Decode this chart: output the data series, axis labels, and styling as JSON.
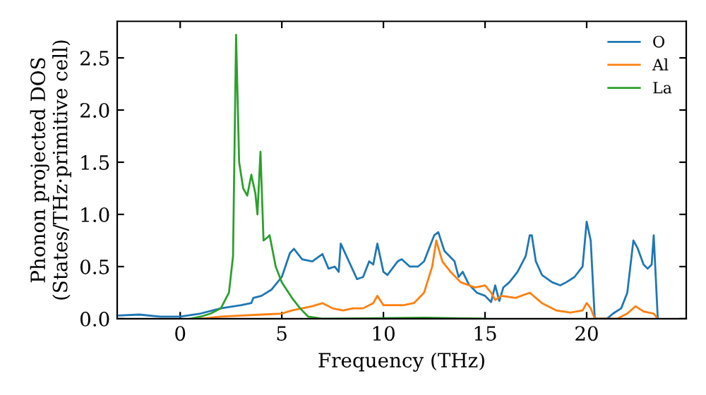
{
  "chart_data": {
    "type": "line",
    "xlabel": "Frequency (THz)",
    "ylabel": "Phonon projected DOS\n(States/THz·primitive cell)",
    "xlim": [
      -3.1,
      24.9
    ],
    "ylim": [
      0,
      2.85
    ],
    "xticks": [
      0,
      5,
      10,
      15,
      20
    ],
    "yticks": [
      {
        "value": 0,
        "label": "0.0"
      },
      {
        "value": 0.5,
        "label": "0.5"
      },
      {
        "value": 1,
        "label": "1.0"
      },
      {
        "value": 1.5,
        "label": "1.5"
      },
      {
        "value": 2,
        "label": "2.0"
      },
      {
        "value": 2.5,
        "label": "2.5"
      }
    ],
    "legend": "top right",
    "grid": false,
    "marker": "none",
    "line_style": "solid",
    "series": [
      {
        "name": "O",
        "color": "#1f77b4",
        "x": [
          -3.1,
          -2,
          -1,
          0,
          1,
          2,
          3,
          3.5,
          3.6,
          4,
          4.5,
          5,
          5.4,
          5.6,
          6,
          6.5,
          7,
          7.3,
          7.6,
          7.8,
          7.9,
          8.3,
          8.7,
          9,
          9.3,
          9.5,
          9.7,
          10,
          10.2,
          10.7,
          10.9,
          11.3,
          11.7,
          12,
          12.5,
          12.7,
          13,
          13.5,
          13.7,
          13.9,
          14.2,
          14.6,
          15,
          15.3,
          15.5,
          15.7,
          15.9,
          16.2,
          16.6,
          17,
          17.2,
          17.3,
          17.5,
          17.8,
          18.3,
          18.7,
          19,
          19.4,
          19.8,
          20,
          20.2,
          20.4,
          21,
          21.3,
          21.7,
          22,
          22.3,
          22.5,
          22.8,
          23,
          23.2,
          23.3,
          23.5
        ],
        "values": [
          0.03,
          0.04,
          0.02,
          0.02,
          0.05,
          0.1,
          0.13,
          0.15,
          0.2,
          0.22,
          0.28,
          0.4,
          0.63,
          0.67,
          0.57,
          0.55,
          0.62,
          0.48,
          0.5,
          0.45,
          0.72,
          0.55,
          0.38,
          0.4,
          0.55,
          0.52,
          0.72,
          0.45,
          0.42,
          0.55,
          0.57,
          0.5,
          0.5,
          0.55,
          0.8,
          0.83,
          0.65,
          0.55,
          0.4,
          0.45,
          0.33,
          0.25,
          0.22,
          0.16,
          0.32,
          0.17,
          0.3,
          0.35,
          0.45,
          0.6,
          0.8,
          0.8,
          0.55,
          0.42,
          0.35,
          0.32,
          0.35,
          0.4,
          0.5,
          0.93,
          0.75,
          0,
          0,
          0.05,
          0.1,
          0.25,
          0.75,
          0.68,
          0.52,
          0.48,
          0.52,
          0.8,
          0
        ]
      },
      {
        "name": "Al",
        "color": "#ff7f0e",
        "x": [
          1,
          2,
          3,
          4,
          5,
          5.5,
          6,
          6.5,
          7,
          7.5,
          8,
          8.5,
          9,
          9.5,
          9.7,
          10,
          11,
          11.5,
          12,
          12.4,
          12.6,
          12.9,
          13.3,
          13.8,
          14.5,
          15,
          15.3,
          15.5,
          15.8,
          16.5,
          17.2,
          17.8,
          18.5,
          19.2,
          19.8,
          20,
          20.2,
          20.4,
          21.5,
          22,
          22.4,
          22.8,
          23.3,
          23.5
        ],
        "values": [
          0,
          0.02,
          0.03,
          0.04,
          0.05,
          0.08,
          0.1,
          0.12,
          0.15,
          0.1,
          0.08,
          0.1,
          0.1,
          0.15,
          0.22,
          0.13,
          0.13,
          0.15,
          0.25,
          0.5,
          0.75,
          0.55,
          0.45,
          0.35,
          0.3,
          0.32,
          0.25,
          0.18,
          0.22,
          0.2,
          0.25,
          0.15,
          0.08,
          0.06,
          0.08,
          0.15,
          0.1,
          0,
          0,
          0.05,
          0.12,
          0.07,
          0.05,
          0
        ]
      },
      {
        "name": "La",
        "color": "#2ca02c",
        "x": [
          0.5,
          1,
          1.5,
          2,
          2.4,
          2.6,
          2.75,
          2.9,
          3.1,
          3.3,
          3.5,
          3.7,
          3.8,
          3.95,
          4.1,
          4.3,
          4.4,
          4.7,
          5,
          5.5,
          5.9,
          6.3,
          7,
          12,
          15
        ],
        "values": [
          0,
          0.02,
          0.05,
          0.1,
          0.25,
          0.6,
          2.72,
          1.5,
          1.25,
          1.18,
          1.38,
          1.2,
          1.0,
          1.6,
          0.75,
          0.78,
          0.8,
          0.5,
          0.35,
          0.2,
          0.1,
          0.02,
          0,
          0.01,
          0
        ]
      }
    ]
  }
}
